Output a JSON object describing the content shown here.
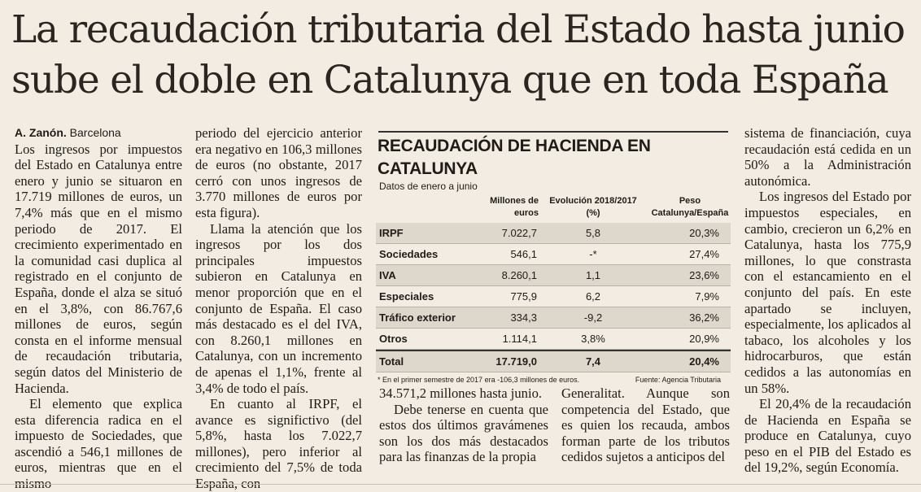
{
  "headline": {
    "line1": "La recaudación tributaria del Estado hasta junio",
    "line2": "sube el doble en Catalunya que en toda España"
  },
  "byline": {
    "author": "A. Zanón.",
    "place": "Barcelona"
  },
  "columns": {
    "c1": [
      "Los ingresos por impuestos del Estado en Catalunya entre enero y junio se situaron en 17.719 millones de euros, un 7,4% más que en el mismo periodo de 2017. El crecimiento experimentado en la comunidad casi duplica al registrado en el conjunto de España, donde el alza se situó en el 3,8%, con 86.767,6 millones de euros, según consta en el informe mensual de recaudación tributaria, según datos del Ministerio de Hacienda.",
      "El elemento que explica esta diferencia radica en el impuesto de Sociedades, que ascendió a 546,1 millones de euros, mientras que en el mismo"
    ],
    "c2": [
      "periodo del ejercicio anterior era negativo en 106,3 millones de euros (no obstante, 2017 cerró con unos ingresos de 3.770 millones de euros por esta figura).",
      "Llama la atención que los ingresos por los dos principales impuestos subieron en Catalunya en menor proporción que en el conjunto de España. El caso más destacado es el del IVA, con 8.260,1 millones en Catalunya, con un incremento de apenas el 1,1%, frente al 3,4% de todo el país.",
      "En cuanto al IRPF, el avance es significtivo (del 5,8%, hasta los 7.022,7 millones), pero inferior al crecimiento del 7,5% de toda España, con"
    ],
    "c3": [
      "34.571,2 millones hasta junio.",
      "Debe tenerse en cuenta que estos dos últimos gravámenes son los dos más destacados para las finanzas de la propia"
    ],
    "c4": [
      "Generalitat. Aunque son competencia del Estado, que es quien los recauda, ambos forman parte de los tributos cedidos sujetos a anticipos del"
    ],
    "c5": [
      "sistema de financiación, cuya recaudación está cedida en un 50% a la Administración autonómica.",
      "Los ingresos del Estado por impuestos especiales, en cambio, crecieron un 6,2% en Catalunya, hasta los 775,9 millones, lo que constrasta con el estancamiento en el conjunto del país. En este apartado se incluyen, especialmente, los aplicados al tabaco, los alcoholes y los hidrocarburos, que están cedidos a las autonomías en un 58%.",
      "El 20,4% de la recaudación de Hacienda en España se produce en Catalunya, cuyo peso en el PIB del Estado es del 19,2%, según Economía."
    ]
  },
  "table": {
    "title": "RECAUDACIÓN DE HACIENDA EN CATALUNYA",
    "subtitle": "Datos de enero a junio",
    "headers": [
      "Millones de euros",
      "Evolución 2018/2017 (%)",
      "Peso Catalunya/España"
    ],
    "rows": [
      {
        "label": "IRPF",
        "millones": "7.022,7",
        "evolucion": "5,8",
        "peso": "20,3%"
      },
      {
        "label": "Sociedades",
        "millones": "546,1",
        "evolucion": "-*",
        "peso": "27,4%"
      },
      {
        "label": "IVA",
        "millones": "8.260,1",
        "evolucion": "1,1",
        "peso": "23,6%"
      },
      {
        "label": "Especiales",
        "millones": "775,9",
        "evolucion": "6,2",
        "peso": "7,9%"
      },
      {
        "label": "Tráfico exterior",
        "millones": "334,3",
        "evolucion": "-9,2",
        "peso": "36,2%"
      },
      {
        "label": "Otros",
        "millones": "1.114,1",
        "evolucion": "3,8%",
        "peso": "20,9%"
      }
    ],
    "total": {
      "label": "Total",
      "millones": "17.719,0",
      "evolucion": "7,4",
      "peso": "20,4%"
    },
    "footnote": "* En el primer semestre de 2017 era -106,3 millones de euros.",
    "source": "Fuente: Agencia Tributaria"
  }
}
